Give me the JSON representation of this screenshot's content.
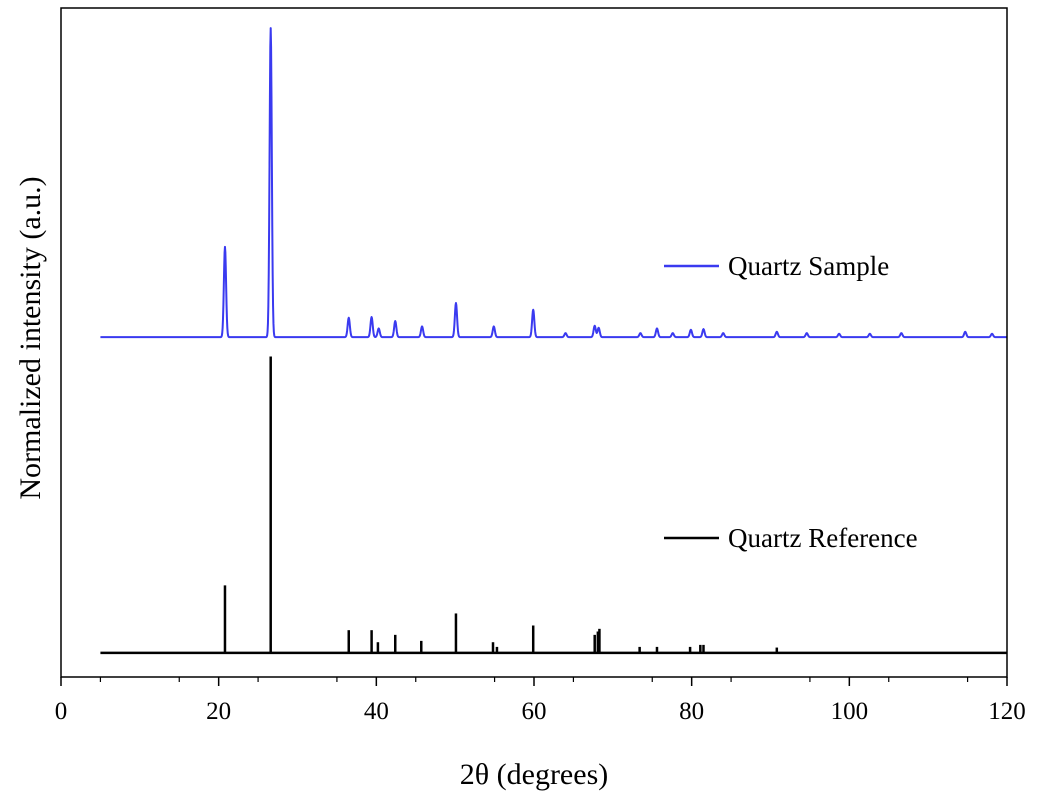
{
  "chart_data": {
    "type": "line",
    "title": "",
    "xlabel": "2θ (degrees)",
    "ylabel": "Normalized intensity (a.u.)",
    "xlim": [
      0,
      120
    ],
    "x_ticks": [
      "0",
      "20",
      "40",
      "60",
      "80",
      "100",
      "120"
    ],
    "ylim": [
      0,
      1
    ],
    "y_ticks_labeled": false,
    "legend": "inline-right",
    "series": [
      {
        "name": "Quartz Sample",
        "color": "#3a3af0",
        "style": "continuous-pattern",
        "baseline": 0.508,
        "x_start": 5,
        "x_end": 120,
        "peaks": [
          {
            "x": 20.8,
            "y": 0.643
          },
          {
            "x": 26.6,
            "y": 0.97
          },
          {
            "x": 36.5,
            "y": 0.537
          },
          {
            "x": 39.4,
            "y": 0.538
          },
          {
            "x": 40.3,
            "y": 0.521
          },
          {
            "x": 42.4,
            "y": 0.532
          },
          {
            "x": 45.8,
            "y": 0.524
          },
          {
            "x": 50.1,
            "y": 0.559
          },
          {
            "x": 54.9,
            "y": 0.524
          },
          {
            "x": 59.9,
            "y": 0.549
          },
          {
            "x": 64.0,
            "y": 0.514
          },
          {
            "x": 67.7,
            "y": 0.525
          },
          {
            "x": 68.2,
            "y": 0.522
          },
          {
            "x": 73.5,
            "y": 0.514
          },
          {
            "x": 75.6,
            "y": 0.521
          },
          {
            "x": 77.6,
            "y": 0.514
          },
          {
            "x": 79.9,
            "y": 0.519
          },
          {
            "x": 81.5,
            "y": 0.52
          },
          {
            "x": 84.0,
            "y": 0.514
          },
          {
            "x": 90.8,
            "y": 0.516
          },
          {
            "x": 94.6,
            "y": 0.514
          },
          {
            "x": 98.7,
            "y": 0.513
          },
          {
            "x": 102.6,
            "y": 0.513
          },
          {
            "x": 106.6,
            "y": 0.514
          },
          {
            "x": 114.7,
            "y": 0.516
          },
          {
            "x": 118.1,
            "y": 0.513
          }
        ]
      },
      {
        "name": "Quartz Reference",
        "color": "#000000",
        "style": "stick-pattern",
        "baseline": 0.036,
        "x_start": 5,
        "x_end": 120,
        "sticks": [
          {
            "x": 20.8,
            "y": 0.137
          },
          {
            "x": 26.6,
            "y": 0.479
          },
          {
            "x": 36.5,
            "y": 0.07
          },
          {
            "x": 39.4,
            "y": 0.07
          },
          {
            "x": 40.2,
            "y": 0.052
          },
          {
            "x": 42.4,
            "y": 0.063
          },
          {
            "x": 45.7,
            "y": 0.054
          },
          {
            "x": 50.1,
            "y": 0.095
          },
          {
            "x": 54.8,
            "y": 0.052
          },
          {
            "x": 55.3,
            "y": 0.045
          },
          {
            "x": 59.9,
            "y": 0.077
          },
          {
            "x": 67.7,
            "y": 0.063
          },
          {
            "x": 68.1,
            "y": 0.068
          },
          {
            "x": 68.3,
            "y": 0.072
          },
          {
            "x": 73.4,
            "y": 0.045
          },
          {
            "x": 75.6,
            "y": 0.045
          },
          {
            "x": 79.8,
            "y": 0.045
          },
          {
            "x": 81.1,
            "y": 0.048
          },
          {
            "x": 81.5,
            "y": 0.048
          },
          {
            "x": 90.8,
            "y": 0.044
          }
        ]
      }
    ]
  }
}
